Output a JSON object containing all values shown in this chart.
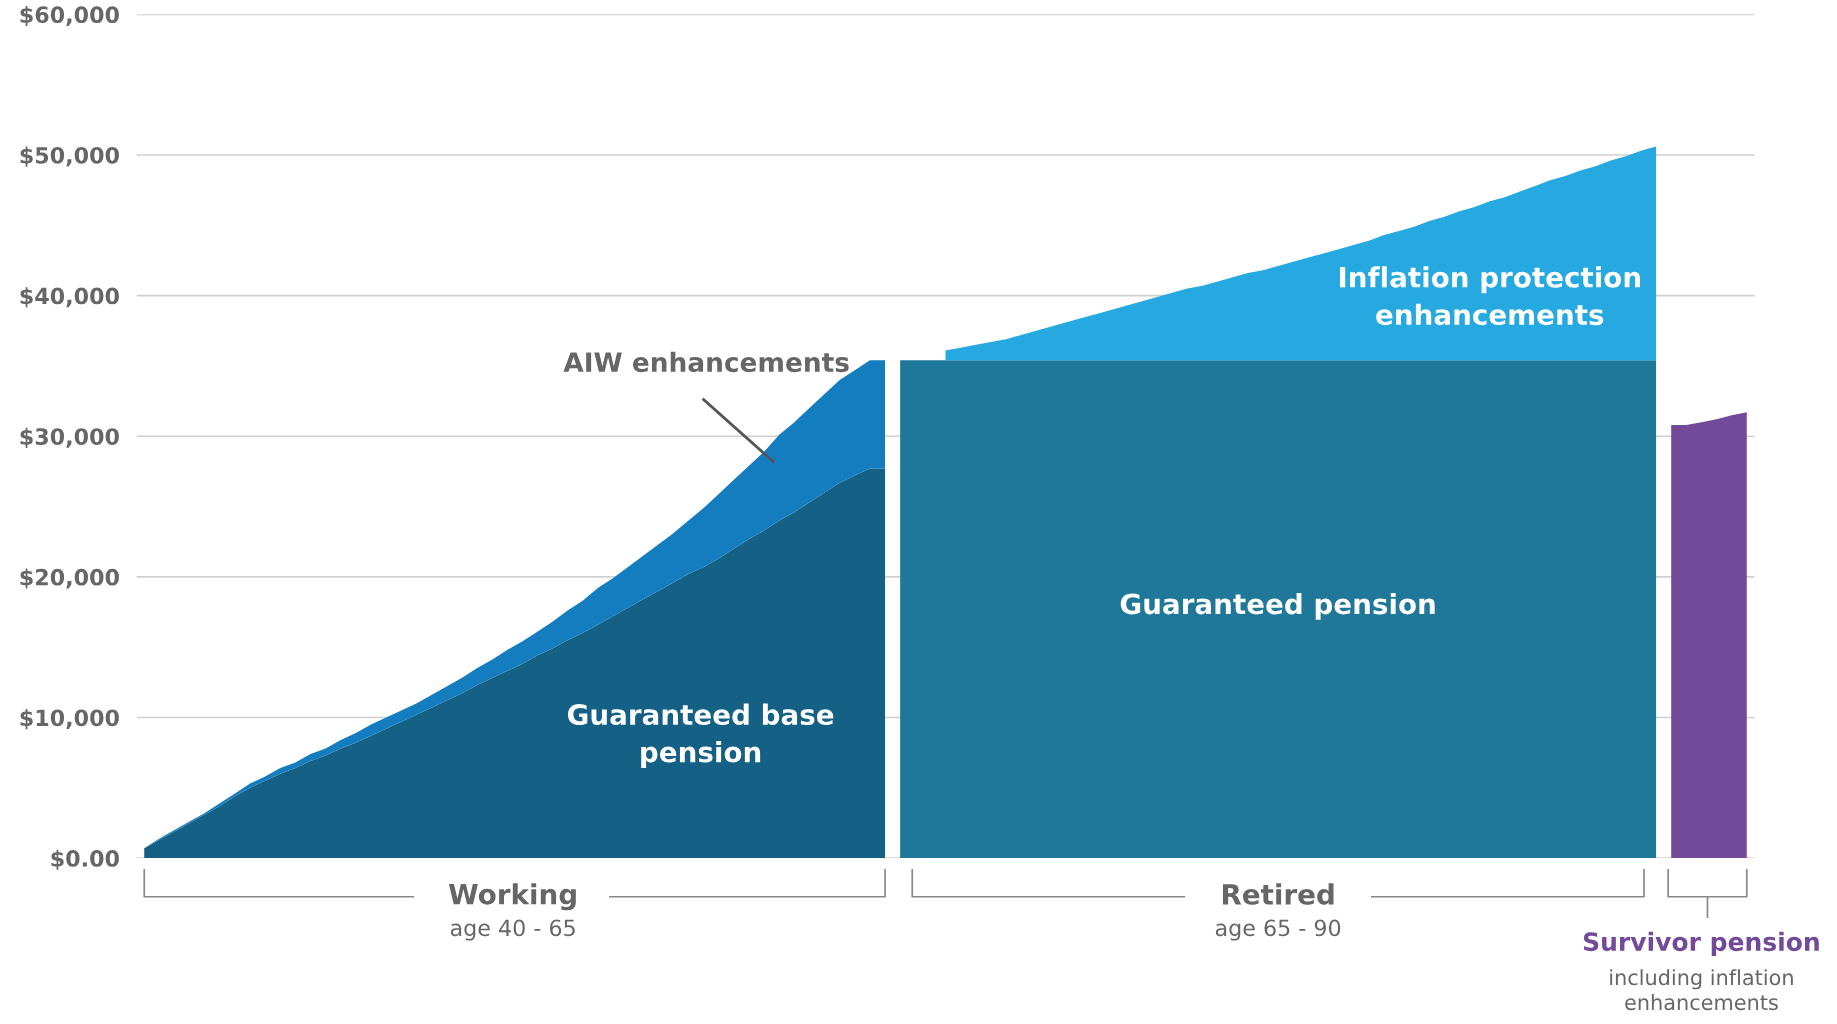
{
  "chart_data": {
    "type": "area",
    "stacked": true,
    "grid": "y",
    "tick_labels": "y",
    "categories": [
      null,
      null,
      null,
      null,
      null,
      null,
      null,
      null,
      null,
      null,
      null,
      null,
      null,
      null,
      null,
      null,
      null,
      null,
      null,
      null,
      null,
      null,
      null,
      null,
      null,
      null,
      null,
      null,
      null,
      null,
      null,
      null,
      null,
      null,
      null,
      null,
      null,
      null,
      null,
      null,
      null,
      null,
      null,
      null,
      null,
      null,
      null,
      null,
      null,
      null,
      null,
      null,
      null,
      null,
      null,
      null,
      null,
      null,
      null,
      null,
      null,
      null,
      null,
      null,
      null,
      null,
      null,
      null,
      null,
      null,
      null,
      null,
      null,
      null,
      null,
      null,
      null,
      null,
      null,
      null,
      null,
      null,
      null,
      null,
      null,
      null,
      null,
      null,
      null,
      null,
      null,
      null,
      null,
      null,
      null,
      null,
      null,
      null,
      null,
      null,
      null,
      null,
      null,
      null,
      null,
      null,
      null
    ],
    "ylim": [
      0,
      60000
    ],
    "yticks": [
      {
        "value": 0,
        "label": "$0.00"
      },
      {
        "value": 10000,
        "label": "$10,000"
      },
      {
        "value": 20000,
        "label": "$20,000"
      },
      {
        "value": 30000,
        "label": "$30,000"
      },
      {
        "value": 40000,
        "label": "$40,000"
      },
      {
        "value": 50000,
        "label": "$50,000"
      },
      {
        "value": 60000,
        "label": "$60,000"
      }
    ],
    "series": [
      {
        "name": "Guaranteed base pension",
        "color": "#156185",
        "values": [
          700,
          1300,
          1900,
          2500,
          3100,
          3700,
          4400,
          5000,
          5500,
          6000,
          6400,
          6900,
          7300,
          7800,
          8200,
          8700,
          9200,
          9700,
          10200,
          10700,
          11200,
          11700,
          12300,
          12800,
          13300,
          13800,
          14400,
          14900,
          15500,
          16000,
          16600,
          17200,
          17800,
          18400,
          19000,
          19600,
          20200,
          20700,
          21300,
          22000,
          22700,
          23300,
          24000,
          24600,
          25300,
          26000,
          26700,
          27200,
          27700,
          27700,
          null,
          null,
          null,
          null,
          null,
          null,
          null,
          null,
          null,
          null,
          null,
          null,
          null,
          null,
          null,
          null,
          null,
          null,
          null,
          null,
          null,
          null,
          null,
          null,
          null,
          null,
          null,
          null,
          null,
          null,
          null,
          null,
          null,
          null,
          null,
          null,
          null,
          null,
          null,
          null,
          null,
          null,
          null,
          null,
          null,
          null,
          null,
          null,
          null,
          null,
          null,
          null,
          null,
          null,
          null,
          null,
          null
        ]
      },
      {
        "name": "AIW enhancements",
        "color": "#147dbf",
        "values": [
          0,
          100,
          100,
          100,
          100,
          200,
          200,
          300,
          300,
          400,
          400,
          500,
          500,
          600,
          700,
          800,
          800,
          800,
          800,
          900,
          1000,
          1100,
          1200,
          1300,
          1500,
          1600,
          1700,
          1900,
          2100,
          2300,
          2600,
          2700,
          2900,
          3100,
          3300,
          3500,
          3800,
          4200,
          4600,
          4900,
          5200,
          5600,
          6100,
          6400,
          6700,
          7000,
          7300,
          7500,
          7700,
          7700,
          null,
          null,
          null,
          null,
          null,
          null,
          null,
          null,
          null,
          null,
          null,
          null,
          null,
          null,
          null,
          null,
          null,
          null,
          null,
          null,
          null,
          null,
          null,
          null,
          null,
          null,
          null,
          null,
          null,
          null,
          null,
          null,
          null,
          null,
          null,
          null,
          null,
          null,
          null,
          null,
          null,
          null,
          null,
          null,
          null,
          null,
          null,
          null,
          null,
          null,
          null,
          null,
          null,
          null,
          null,
          null,
          null
        ]
      },
      {
        "name": "Guaranteed pension",
        "color": "#1f7899",
        "values": [
          null,
          null,
          null,
          null,
          null,
          null,
          null,
          null,
          null,
          null,
          null,
          null,
          null,
          null,
          null,
          null,
          null,
          null,
          null,
          null,
          null,
          null,
          null,
          null,
          null,
          null,
          null,
          null,
          null,
          null,
          null,
          null,
          null,
          null,
          null,
          null,
          null,
          null,
          null,
          null,
          null,
          null,
          null,
          null,
          null,
          null,
          null,
          null,
          null,
          null,
          35400,
          35400,
          35400,
          35400,
          35400,
          35400,
          35400,
          35400,
          35400,
          35400,
          35400,
          35400,
          35400,
          35400,
          35400,
          35400,
          35400,
          35400,
          35400,
          35400,
          35400,
          35400,
          35400,
          35400,
          35400,
          35400,
          35400,
          35400,
          35400,
          35400,
          35400,
          35400,
          35400,
          35400,
          35400,
          35400,
          35400,
          35400,
          35400,
          35400,
          35400,
          35400,
          35400,
          35400,
          35400,
          35400,
          35400,
          35400,
          35400,
          35400,
          35400,
          null,
          null,
          null,
          null,
          null,
          null
        ]
      },
      {
        "name": "Inflation protection enhancements",
        "color": "#25a9e0",
        "values": [
          null,
          null,
          null,
          null,
          null,
          null,
          null,
          null,
          null,
          null,
          null,
          null,
          null,
          null,
          null,
          null,
          null,
          null,
          null,
          null,
          null,
          null,
          null,
          null,
          null,
          null,
          null,
          null,
          null,
          null,
          null,
          null,
          null,
          null,
          null,
          null,
          null,
          null,
          null,
          null,
          null,
          null,
          null,
          null,
          null,
          null,
          null,
          null,
          null,
          null,
          null,
          null,
          null,
          700,
          900,
          1100,
          1300,
          1500,
          1800,
          2100,
          2400,
          2700,
          3000,
          3300,
          3600,
          3900,
          4200,
          4500,
          4800,
          5100,
          5300,
          5600,
          5900,
          6200,
          6400,
          6700,
          7000,
          7300,
          7600,
          7900,
          8200,
          8500,
          8900,
          9200,
          9500,
          9900,
          10200,
          10600,
          10900,
          11300,
          11600,
          12000,
          12400,
          12800,
          13100,
          13500,
          13800,
          14200,
          14500,
          14900,
          15200,
          null,
          null,
          null,
          null,
          null,
          null
        ]
      },
      {
        "name": "Survivor pension",
        "color": "#734a99",
        "values": [
          null,
          null,
          null,
          null,
          null,
          null,
          null,
          null,
          null,
          null,
          null,
          null,
          null,
          null,
          null,
          null,
          null,
          null,
          null,
          null,
          null,
          null,
          null,
          null,
          null,
          null,
          null,
          null,
          null,
          null,
          null,
          null,
          null,
          null,
          null,
          null,
          null,
          null,
          null,
          null,
          null,
          null,
          null,
          null,
          null,
          null,
          null,
          null,
          null,
          null,
          null,
          null,
          null,
          null,
          null,
          null,
          null,
          null,
          null,
          null,
          null,
          null,
          null,
          null,
          null,
          null,
          null,
          null,
          null,
          null,
          null,
          null,
          null,
          null,
          null,
          null,
          null,
          null,
          null,
          null,
          null,
          null,
          null,
          null,
          null,
          null,
          null,
          null,
          null,
          null,
          null,
          null,
          null,
          null,
          null,
          null,
          null,
          null,
          null,
          null,
          null,
          30800,
          30800,
          31000,
          31200,
          31500,
          31700
        ]
      }
    ],
    "annotations": [
      "Working",
      "age 40 - 65",
      "Retired",
      "age 65 - 90",
      "including inflation enhancements"
    ]
  }
}
